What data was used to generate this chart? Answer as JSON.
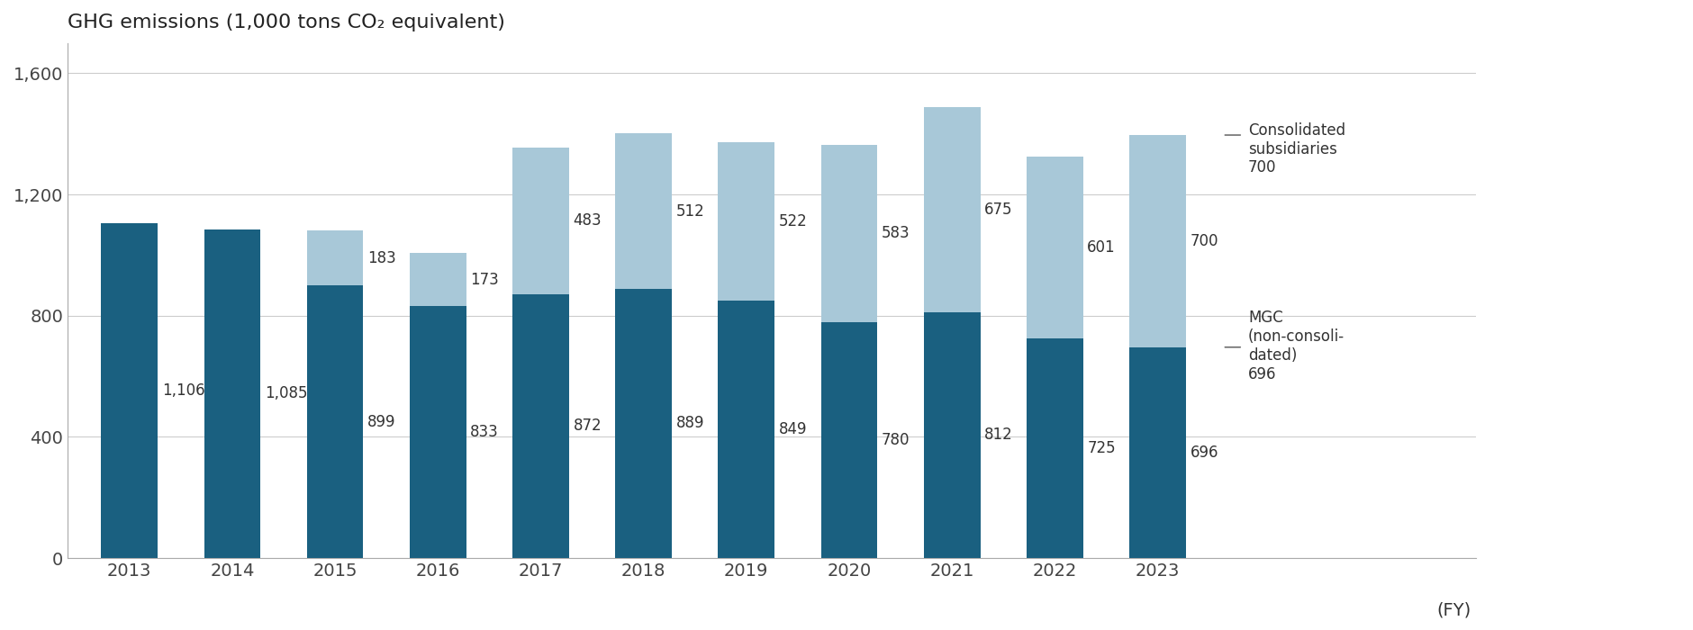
{
  "years": [
    "2013",
    "2014",
    "2015",
    "2016",
    "2017",
    "2018",
    "2019",
    "2020",
    "2021",
    "2022",
    "2023"
  ],
  "mgc_values": [
    1106,
    1085,
    899,
    833,
    872,
    889,
    849,
    780,
    812,
    725,
    696
  ],
  "consolidated_values": [
    0,
    0,
    183,
    173,
    483,
    512,
    522,
    583,
    675,
    601,
    700
  ],
  "mgc_color": "#1a6080",
  "consolidated_color": "#a8c8d8",
  "title": "GHG emissions (1,000 tons CO₂ equivalent)",
  "ylabel": "",
  "xlabel": "(FY)",
  "ylim": [
    0,
    1700
  ],
  "yticks": [
    0,
    400,
    800,
    1200,
    1600
  ],
  "legend_consolidated": "Consolidated\nsubsidiaries\n700",
  "legend_mgc": "MGC\n(non-consoli-\ndated)\n696",
  "title_fontsize": 16,
  "tick_fontsize": 14,
  "label_fontsize": 12,
  "background_color": "#ffffff"
}
